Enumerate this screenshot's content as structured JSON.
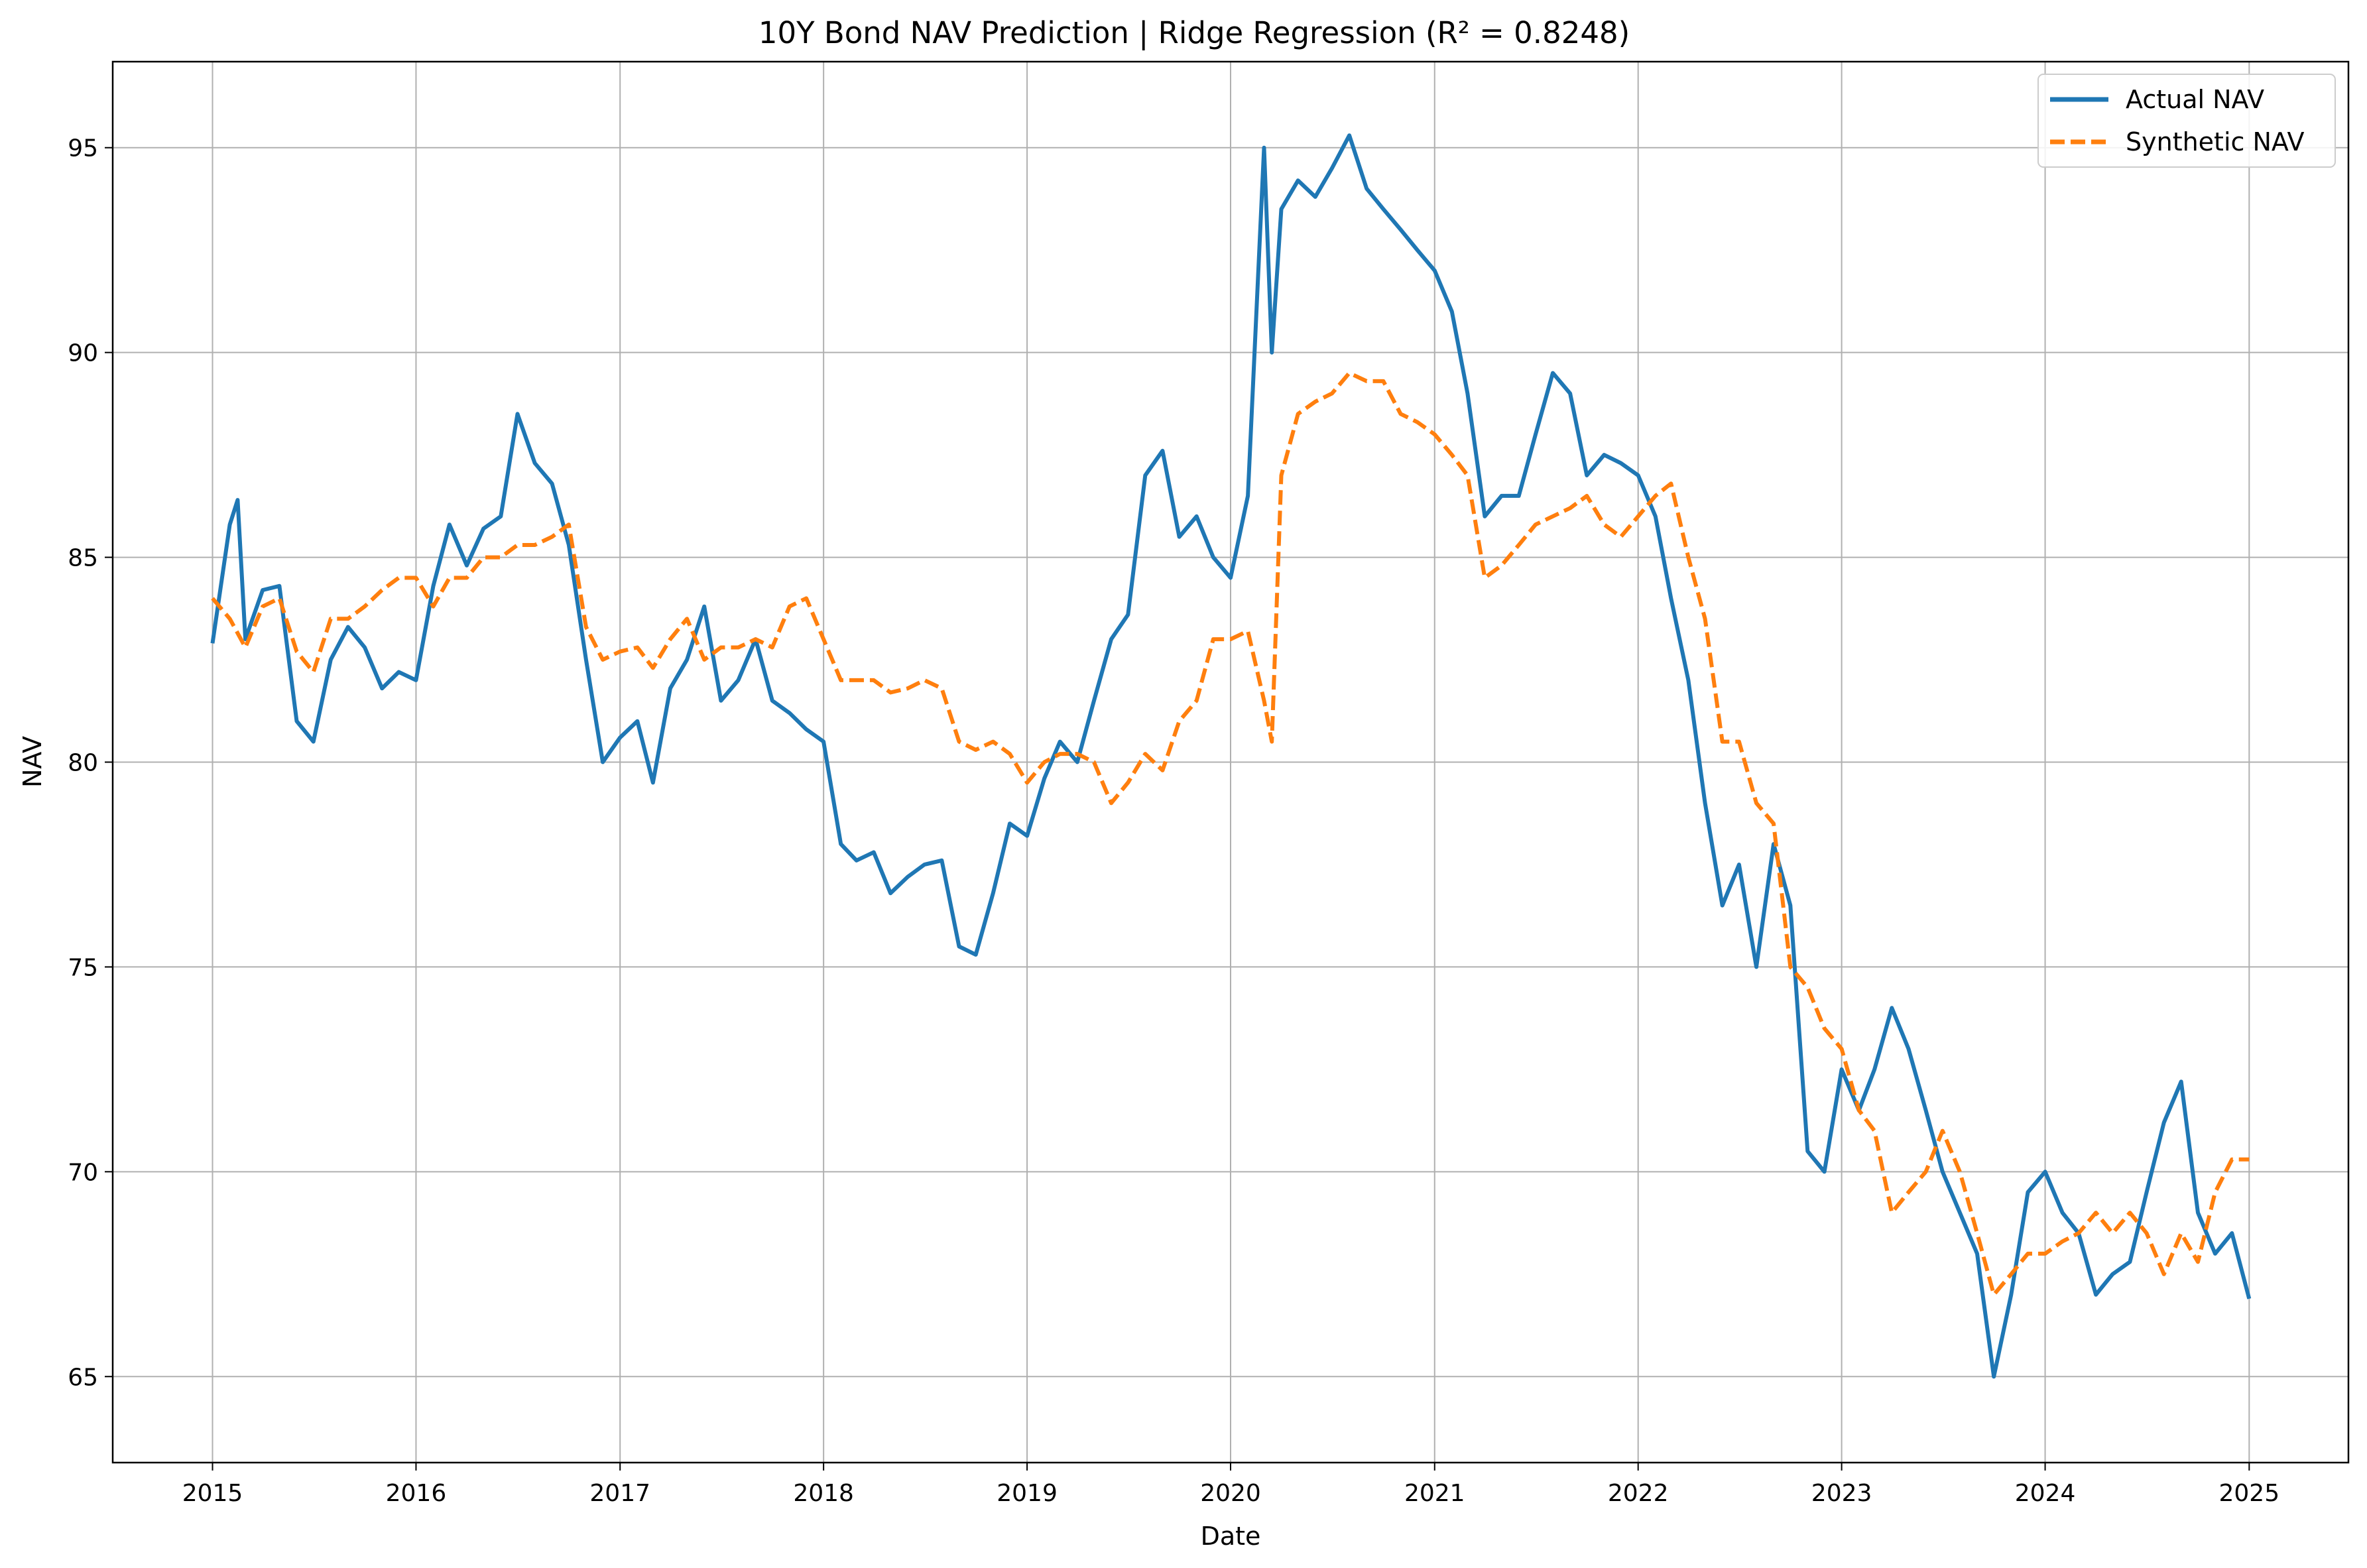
{
  "chart_data": {
    "type": "line",
    "title": "10Y Bond NAV Prediction | Ridge Regression (R² = 0.8248)",
    "xlabel": "Date",
    "ylabel": "NAV",
    "xlim": [
      "2014-07-06",
      "2025-06-28"
    ],
    "ylim": [
      62.9,
      97.1
    ],
    "xticks": [
      "2015",
      "2016",
      "2017",
      "2018",
      "2019",
      "2020",
      "2021",
      "2022",
      "2023",
      "2024",
      "2025"
    ],
    "yticks": [
      65,
      70,
      75,
      80,
      85,
      90,
      95
    ],
    "grid": true,
    "legend_position": "top-right",
    "series": [
      {
        "name": "Actual NAV",
        "color": "#1f77b4",
        "style": "solid",
        "points": [
          [
            "2015-01-01",
            82.9
          ],
          [
            "2015-02-01",
            85.8
          ],
          [
            "2015-02-15",
            86.4
          ],
          [
            "2015-03-01",
            83.0
          ],
          [
            "2015-04-01",
            84.2
          ],
          [
            "2015-05-01",
            84.3
          ],
          [
            "2015-06-01",
            81.0
          ],
          [
            "2015-07-01",
            80.5
          ],
          [
            "2015-08-01",
            82.5
          ],
          [
            "2015-09-01",
            83.3
          ],
          [
            "2015-10-01",
            82.8
          ],
          [
            "2015-11-01",
            81.8
          ],
          [
            "2015-12-01",
            82.2
          ],
          [
            "2016-01-01",
            82.0
          ],
          [
            "2016-02-01",
            84.3
          ],
          [
            "2016-03-01",
            85.8
          ],
          [
            "2016-04-01",
            84.8
          ],
          [
            "2016-05-01",
            85.7
          ],
          [
            "2016-06-01",
            86.0
          ],
          [
            "2016-07-01",
            88.5
          ],
          [
            "2016-08-01",
            87.3
          ],
          [
            "2016-09-01",
            86.8
          ],
          [
            "2016-10-01",
            85.3
          ],
          [
            "2016-11-01",
            82.5
          ],
          [
            "2016-12-01",
            80.0
          ],
          [
            "2017-01-01",
            80.6
          ],
          [
            "2017-02-01",
            81.0
          ],
          [
            "2017-03-01",
            79.5
          ],
          [
            "2017-04-01",
            81.8
          ],
          [
            "2017-05-01",
            82.5
          ],
          [
            "2017-06-01",
            83.8
          ],
          [
            "2017-07-01",
            81.5
          ],
          [
            "2017-08-01",
            82.0
          ],
          [
            "2017-09-01",
            83.0
          ],
          [
            "2017-10-01",
            81.5
          ],
          [
            "2017-11-01",
            81.2
          ],
          [
            "2017-12-01",
            80.8
          ],
          [
            "2018-01-01",
            80.5
          ],
          [
            "2018-02-01",
            78.0
          ],
          [
            "2018-03-01",
            77.6
          ],
          [
            "2018-04-01",
            77.8
          ],
          [
            "2018-05-01",
            76.8
          ],
          [
            "2018-06-01",
            77.2
          ],
          [
            "2018-07-01",
            77.5
          ],
          [
            "2018-08-01",
            77.6
          ],
          [
            "2018-09-01",
            75.5
          ],
          [
            "2018-10-01",
            75.3
          ],
          [
            "2018-11-01",
            76.8
          ],
          [
            "2018-12-01",
            78.5
          ],
          [
            "2019-01-01",
            78.2
          ],
          [
            "2019-02-01",
            79.6
          ],
          [
            "2019-03-01",
            80.5
          ],
          [
            "2019-04-01",
            80.0
          ],
          [
            "2019-05-01",
            81.5
          ],
          [
            "2019-06-01",
            83.0
          ],
          [
            "2019-07-01",
            83.6
          ],
          [
            "2019-08-01",
            87.0
          ],
          [
            "2019-09-01",
            87.6
          ],
          [
            "2019-10-01",
            85.5
          ],
          [
            "2019-11-01",
            86.0
          ],
          [
            "2019-12-01",
            85.0
          ],
          [
            "2020-01-01",
            84.5
          ],
          [
            "2020-02-01",
            86.5
          ],
          [
            "2020-03-01",
            95.0
          ],
          [
            "2020-03-15",
            90.0
          ],
          [
            "2020-04-01",
            93.5
          ],
          [
            "2020-05-01",
            94.2
          ],
          [
            "2020-06-01",
            93.8
          ],
          [
            "2020-07-01",
            94.5
          ],
          [
            "2020-08-01",
            95.3
          ],
          [
            "2020-09-01",
            94.0
          ],
          [
            "2020-10-01",
            93.5
          ],
          [
            "2020-11-01",
            93.0
          ],
          [
            "2020-12-01",
            92.5
          ],
          [
            "2021-01-01",
            92.0
          ],
          [
            "2021-02-01",
            91.0
          ],
          [
            "2021-03-01",
            89.0
          ],
          [
            "2021-04-01",
            86.0
          ],
          [
            "2021-05-01",
            86.5
          ],
          [
            "2021-06-01",
            86.5
          ],
          [
            "2021-07-01",
            88.0
          ],
          [
            "2021-08-01",
            89.5
          ],
          [
            "2021-09-01",
            89.0
          ],
          [
            "2021-10-01",
            87.0
          ],
          [
            "2021-11-01",
            87.5
          ],
          [
            "2021-12-01",
            87.3
          ],
          [
            "2022-01-01",
            87.0
          ],
          [
            "2022-02-01",
            86.0
          ],
          [
            "2022-03-01",
            84.0
          ],
          [
            "2022-04-01",
            82.0
          ],
          [
            "2022-05-01",
            79.0
          ],
          [
            "2022-06-01",
            76.5
          ],
          [
            "2022-07-01",
            77.5
          ],
          [
            "2022-08-01",
            75.0
          ],
          [
            "2022-09-01",
            78.0
          ],
          [
            "2022-10-01",
            76.5
          ],
          [
            "2022-11-01",
            70.5
          ],
          [
            "2022-12-01",
            70.0
          ],
          [
            "2023-01-01",
            72.5
          ],
          [
            "2023-02-01",
            71.5
          ],
          [
            "2023-03-01",
            72.5
          ],
          [
            "2023-04-01",
            74.0
          ],
          [
            "2023-05-01",
            73.0
          ],
          [
            "2023-06-01",
            71.5
          ],
          [
            "2023-07-01",
            70.0
          ],
          [
            "2023-08-01",
            69.0
          ],
          [
            "2023-09-01",
            68.0
          ],
          [
            "2023-10-01",
            65.0
          ],
          [
            "2023-11-01",
            67.0
          ],
          [
            "2023-12-01",
            69.5
          ],
          [
            "2024-01-01",
            70.0
          ],
          [
            "2024-02-01",
            69.0
          ],
          [
            "2024-03-01",
            68.5
          ],
          [
            "2024-04-01",
            67.0
          ],
          [
            "2024-05-01",
            67.5
          ],
          [
            "2024-06-01",
            67.8
          ],
          [
            "2024-07-01",
            69.5
          ],
          [
            "2024-08-01",
            71.2
          ],
          [
            "2024-09-01",
            72.2
          ],
          [
            "2024-10-01",
            69.0
          ],
          [
            "2024-11-01",
            68.0
          ],
          [
            "2024-12-01",
            68.5
          ],
          [
            "2025-01-01",
            66.9
          ]
        ]
      },
      {
        "name": "Synthetic NAV",
        "color": "#ff7f0e",
        "style": "dashed",
        "points": [
          [
            "2015-01-01",
            84.0
          ],
          [
            "2015-02-01",
            83.5
          ],
          [
            "2015-03-01",
            82.8
          ],
          [
            "2015-04-01",
            83.8
          ],
          [
            "2015-05-01",
            84.0
          ],
          [
            "2015-06-01",
            82.7
          ],
          [
            "2015-07-01",
            82.2
          ],
          [
            "2015-08-01",
            83.5
          ],
          [
            "2015-09-01",
            83.5
          ],
          [
            "2015-10-01",
            83.8
          ],
          [
            "2015-11-01",
            84.2
          ],
          [
            "2015-12-01",
            84.5
          ],
          [
            "2016-01-01",
            84.5
          ],
          [
            "2016-02-01",
            83.8
          ],
          [
            "2016-03-01",
            84.5
          ],
          [
            "2016-04-01",
            84.5
          ],
          [
            "2016-05-01",
            85.0
          ],
          [
            "2016-06-01",
            85.0
          ],
          [
            "2016-07-01",
            85.3
          ],
          [
            "2016-08-01",
            85.3
          ],
          [
            "2016-09-01",
            85.5
          ],
          [
            "2016-10-01",
            85.8
          ],
          [
            "2016-11-01",
            83.3
          ],
          [
            "2016-12-01",
            82.5
          ],
          [
            "2017-01-01",
            82.7
          ],
          [
            "2017-02-01",
            82.8
          ],
          [
            "2017-03-01",
            82.3
          ],
          [
            "2017-04-01",
            83.0
          ],
          [
            "2017-05-01",
            83.5
          ],
          [
            "2017-06-01",
            82.5
          ],
          [
            "2017-07-01",
            82.8
          ],
          [
            "2017-08-01",
            82.8
          ],
          [
            "2017-09-01",
            83.0
          ],
          [
            "2017-10-01",
            82.8
          ],
          [
            "2017-11-01",
            83.8
          ],
          [
            "2017-12-01",
            84.0
          ],
          [
            "2018-01-01",
            83.0
          ],
          [
            "2018-02-01",
            82.0
          ],
          [
            "2018-03-01",
            82.0
          ],
          [
            "2018-04-01",
            82.0
          ],
          [
            "2018-05-01",
            81.7
          ],
          [
            "2018-06-01",
            81.8
          ],
          [
            "2018-07-01",
            82.0
          ],
          [
            "2018-08-01",
            81.8
          ],
          [
            "2018-09-01",
            80.5
          ],
          [
            "2018-10-01",
            80.3
          ],
          [
            "2018-11-01",
            80.5
          ],
          [
            "2018-12-01",
            80.2
          ],
          [
            "2019-01-01",
            79.5
          ],
          [
            "2019-02-01",
            80.0
          ],
          [
            "2019-03-01",
            80.2
          ],
          [
            "2019-04-01",
            80.2
          ],
          [
            "2019-05-01",
            80.0
          ],
          [
            "2019-06-01",
            79.0
          ],
          [
            "2019-07-01",
            79.5
          ],
          [
            "2019-08-01",
            80.2
          ],
          [
            "2019-09-01",
            79.8
          ],
          [
            "2019-10-01",
            81.0
          ],
          [
            "2019-11-01",
            81.5
          ],
          [
            "2019-12-01",
            83.0
          ],
          [
            "2020-01-01",
            83.0
          ],
          [
            "2020-02-01",
            83.2
          ],
          [
            "2020-03-01",
            81.5
          ],
          [
            "2020-03-15",
            80.5
          ],
          [
            "2020-04-01",
            87.0
          ],
          [
            "2020-05-01",
            88.5
          ],
          [
            "2020-06-01",
            88.8
          ],
          [
            "2020-07-01",
            89.0
          ],
          [
            "2020-08-01",
            89.5
          ],
          [
            "2020-09-01",
            89.3
          ],
          [
            "2020-10-01",
            89.3
          ],
          [
            "2020-11-01",
            88.5
          ],
          [
            "2020-12-01",
            88.3
          ],
          [
            "2021-01-01",
            88.0
          ],
          [
            "2021-02-01",
            87.5
          ],
          [
            "2021-03-01",
            87.0
          ],
          [
            "2021-04-01",
            84.5
          ],
          [
            "2021-05-01",
            84.8
          ],
          [
            "2021-06-01",
            85.3
          ],
          [
            "2021-07-01",
            85.8
          ],
          [
            "2021-08-01",
            86.0
          ],
          [
            "2021-09-01",
            86.2
          ],
          [
            "2021-10-01",
            86.5
          ],
          [
            "2021-11-01",
            85.8
          ],
          [
            "2021-12-01",
            85.5
          ],
          [
            "2022-01-01",
            86.0
          ],
          [
            "2022-02-01",
            86.5
          ],
          [
            "2022-03-01",
            86.8
          ],
          [
            "2022-04-01",
            85.0
          ],
          [
            "2022-05-01",
            83.5
          ],
          [
            "2022-06-01",
            80.5
          ],
          [
            "2022-07-01",
            80.5
          ],
          [
            "2022-08-01",
            79.0
          ],
          [
            "2022-09-01",
            78.5
          ],
          [
            "2022-10-01",
            75.0
          ],
          [
            "2022-11-01",
            74.5
          ],
          [
            "2022-12-01",
            73.5
          ],
          [
            "2023-01-01",
            73.0
          ],
          [
            "2023-02-01",
            71.5
          ],
          [
            "2023-03-01",
            71.0
          ],
          [
            "2023-04-01",
            69.0
          ],
          [
            "2023-05-01",
            69.5
          ],
          [
            "2023-06-01",
            70.0
          ],
          [
            "2023-07-01",
            71.0
          ],
          [
            "2023-08-01",
            70.0
          ],
          [
            "2023-09-01",
            68.5
          ],
          [
            "2023-10-01",
            67.0
          ],
          [
            "2023-11-01",
            67.5
          ],
          [
            "2023-12-01",
            68.0
          ],
          [
            "2024-01-01",
            68.0
          ],
          [
            "2024-02-01",
            68.3
          ],
          [
            "2024-03-01",
            68.5
          ],
          [
            "2024-04-01",
            69.0
          ],
          [
            "2024-05-01",
            68.5
          ],
          [
            "2024-06-01",
            69.0
          ],
          [
            "2024-07-01",
            68.5
          ],
          [
            "2024-08-01",
            67.5
          ],
          [
            "2024-09-01",
            68.5
          ],
          [
            "2024-10-01",
            67.8
          ],
          [
            "2024-11-01",
            69.5
          ],
          [
            "2024-12-01",
            70.3
          ],
          [
            "2025-01-01",
            70.3
          ]
        ]
      }
    ]
  }
}
